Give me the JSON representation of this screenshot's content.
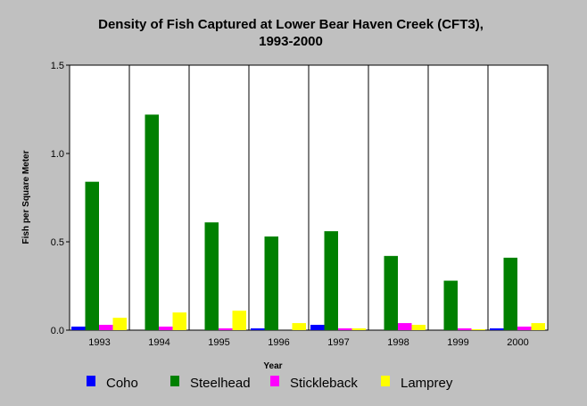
{
  "chart_data": {
    "type": "bar",
    "title_line1": "Density of Fish Captured at Lower Bear Haven Creek (CFT3),",
    "title_line2": "1993-2000",
    "xlabel": "Year",
    "ylabel": "Fish per Square Meter",
    "ylim": [
      0,
      1.5
    ],
    "y_ticks": [
      "0.0",
      "0.5",
      "1.0",
      "1.5"
    ],
    "y_tick_values": [
      0,
      0.5,
      1.0,
      1.5
    ],
    "categories": [
      "1993",
      "1994",
      "1995",
      "1996",
      "1997",
      "1998",
      "1999",
      "2000"
    ],
    "grid": "vertical-category-lines",
    "legend_position": "bottom",
    "series": [
      {
        "name": "Coho",
        "color": "#0000ff",
        "values": [
          0.02,
          0.0,
          0.0,
          0.01,
          0.03,
          0.0,
          0.0,
          0.01
        ]
      },
      {
        "name": "Steelhead",
        "color": "#008000",
        "values": [
          0.84,
          1.22,
          0.61,
          0.53,
          0.56,
          0.42,
          0.28,
          0.41
        ]
      },
      {
        "name": "Stickleback",
        "color": "#ff00ff",
        "values": [
          0.03,
          0.02,
          0.01,
          0.0,
          0.01,
          0.04,
          0.01,
          0.02
        ]
      },
      {
        "name": "Lamprey",
        "color": "#ffff00",
        "values": [
          0.07,
          0.1,
          0.11,
          0.04,
          0.01,
          0.03,
          0.005,
          0.04
        ]
      }
    ]
  }
}
